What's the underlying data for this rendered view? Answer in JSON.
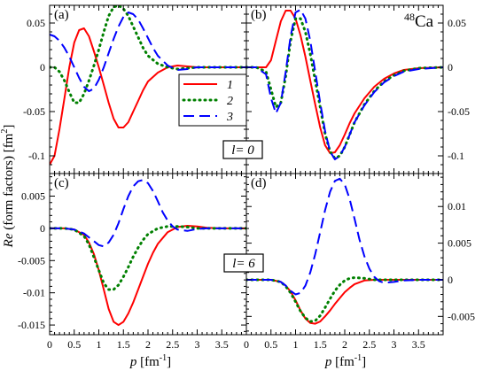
{
  "ylabel": {
    "re": "Re",
    "rest": " (form factors) [fm",
    "sup": "2",
    "close": "]"
  },
  "xlabel": {
    "p": "p",
    "unit": " [fm",
    "sup": "-1",
    "close": "]"
  },
  "nucleus": {
    "mass": "48",
    "symbol": "Ca"
  },
  "l_labels": {
    "l0": "l= 0",
    "l6": "l= 6"
  },
  "legend": [
    {
      "label": "1",
      "color": "#ff0000"
    },
    {
      "label": "2",
      "color": "#008000"
    },
    {
      "label": "3",
      "color": "#0000ff"
    }
  ],
  "chart_data": [
    {
      "id": "a",
      "type": "line",
      "title": "(a)",
      "xlim": [
        0,
        4
      ],
      "ylim": [
        -0.12,
        0.07
      ],
      "x_ticks": [
        0,
        0.5,
        1,
        1.5,
        2,
        2.5,
        3,
        3.5
      ],
      "x_tick_labels": [
        "0",
        "0.5",
        "1",
        "1.5",
        "2",
        "2.5",
        "3",
        "3.5"
      ],
      "y_ticks": [
        -0.1,
        -0.05,
        0,
        0.05
      ],
      "y_tick_labels": [
        "-0.1",
        "-0.05",
        "0",
        "0.05"
      ],
      "series": [
        {
          "name": "1",
          "x": [
            0,
            0.1,
            0.2,
            0.3,
            0.4,
            0.5,
            0.6,
            0.7,
            0.8,
            0.9,
            1,
            1.1,
            1.2,
            1.3,
            1.4,
            1.5,
            1.6,
            1.7,
            1.8,
            1.9,
            2,
            2.2,
            2.4,
            2.6,
            2.8,
            3,
            3.2,
            3.5,
            4
          ],
          "y": [
            -0.11,
            -0.1,
            -0.07,
            -0.035,
            0,
            0.028,
            0.042,
            0.044,
            0.035,
            0.018,
            0,
            -0.02,
            -0.04,
            -0.058,
            -0.068,
            -0.068,
            -0.062,
            -0.05,
            -0.038,
            -0.026,
            -0.016,
            -0.006,
            0,
            0.002,
            0.001,
            0,
            0,
            0,
            0
          ]
        },
        {
          "name": "2",
          "x": [
            0,
            0.1,
            0.2,
            0.3,
            0.4,
            0.5,
            0.6,
            0.7,
            0.8,
            0.9,
            1,
            1.1,
            1.2,
            1.3,
            1.4,
            1.5,
            1.6,
            1.7,
            1.8,
            1.9,
            2,
            2.2,
            2.4,
            2.6,
            2.8,
            3,
            3.2,
            3.5,
            4
          ],
          "y": [
            0,
            0,
            -0.005,
            -0.015,
            -0.028,
            -0.04,
            -0.04,
            -0.03,
            -0.015,
            0.002,
            0.02,
            0.04,
            0.058,
            0.068,
            0.07,
            0.066,
            0.058,
            0.046,
            0.034,
            0.022,
            0.013,
            0.004,
            0,
            -0.002,
            -0.001,
            0,
            0,
            0,
            0
          ]
        },
        {
          "name": "3",
          "x": [
            0,
            0.1,
            0.2,
            0.3,
            0.4,
            0.5,
            0.6,
            0.7,
            0.8,
            0.9,
            1,
            1.1,
            1.2,
            1.3,
            1.4,
            1.5,
            1.6,
            1.7,
            1.8,
            1.9,
            2,
            2.1,
            2.2,
            2.4,
            2.6,
            2.8,
            3,
            3.2,
            3.5,
            4
          ],
          "y": [
            0.037,
            0.035,
            0.03,
            0.022,
            0.012,
            0,
            -0.012,
            -0.022,
            -0.027,
            -0.024,
            -0.014,
            0,
            0.016,
            0.032,
            0.046,
            0.057,
            0.062,
            0.06,
            0.054,
            0.044,
            0.033,
            0.022,
            0.013,
            0.002,
            -0.003,
            -0.002,
            0,
            0,
            0,
            0
          ]
        }
      ]
    },
    {
      "id": "b",
      "type": "line",
      "title": "(b)",
      "xlim": [
        0,
        4
      ],
      "ylim": [
        -0.12,
        0.07
      ],
      "y_axis_side": "right",
      "x_ticks": [
        0,
        0.5,
        1,
        1.5,
        2,
        2.5,
        3,
        3.5
      ],
      "x_tick_labels": [
        "0",
        "0.5",
        "1",
        "1.5",
        "2",
        "2.5",
        "3",
        "3.5"
      ],
      "y_ticks": [
        -0.1,
        -0.05,
        0,
        0.05
      ],
      "y_tick_labels": [
        "-0.1",
        "-0.05",
        "0",
        "0.05"
      ],
      "series": [
        {
          "name": "1",
          "x": [
            0,
            0.2,
            0.4,
            0.5,
            0.6,
            0.7,
            0.8,
            0.9,
            1,
            1.1,
            1.2,
            1.3,
            1.4,
            1.5,
            1.6,
            1.7,
            1.8,
            1.9,
            2,
            2.1,
            2.2,
            2.4,
            2.6,
            2.8,
            3,
            3.2,
            3.5,
            4
          ],
          "y": [
            0,
            0,
            0,
            0.008,
            0.03,
            0.052,
            0.064,
            0.064,
            0.055,
            0.036,
            0.012,
            -0.015,
            -0.042,
            -0.068,
            -0.088,
            -0.097,
            -0.096,
            -0.088,
            -0.076,
            -0.063,
            -0.052,
            -0.035,
            -0.022,
            -0.013,
            -0.007,
            -0.003,
            -0.001,
            0
          ]
        },
        {
          "name": "2",
          "x": [
            0,
            0.2,
            0.4,
            0.5,
            0.6,
            0.7,
            0.8,
            0.9,
            1,
            1.1,
            1.2,
            1.3,
            1.4,
            1.5,
            1.6,
            1.7,
            1.8,
            1.9,
            2,
            2.1,
            2.2,
            2.4,
            2.6,
            2.8,
            3,
            3.2,
            3.5,
            4
          ],
          "y": [
            0,
            0,
            -0.005,
            -0.025,
            -0.045,
            -0.04,
            -0.01,
            0.03,
            0.055,
            0.055,
            0.04,
            0.015,
            -0.015,
            -0.045,
            -0.075,
            -0.095,
            -0.103,
            -0.1,
            -0.09,
            -0.076,
            -0.062,
            -0.042,
            -0.027,
            -0.016,
            -0.009,
            -0.004,
            -0.001,
            0
          ]
        },
        {
          "name": "3",
          "x": [
            0,
            0.2,
            0.4,
            0.5,
            0.6,
            0.7,
            0.8,
            0.9,
            1,
            1.1,
            1.2,
            1.3,
            1.4,
            1.5,
            1.6,
            1.7,
            1.8,
            1.9,
            2,
            2.1,
            2.2,
            2.4,
            2.6,
            2.8,
            3,
            3.2,
            3.5,
            4
          ],
          "y": [
            0,
            0,
            -0.008,
            -0.035,
            -0.052,
            -0.04,
            -0.005,
            0.035,
            0.062,
            0.065,
            0.055,
            0.03,
            -0.005,
            -0.04,
            -0.072,
            -0.095,
            -0.104,
            -0.1,
            -0.09,
            -0.076,
            -0.062,
            -0.043,
            -0.028,
            -0.017,
            -0.01,
            -0.005,
            -0.002,
            0
          ]
        }
      ]
    },
    {
      "id": "c",
      "type": "line",
      "title": "(c)",
      "xlim": [
        0,
        4
      ],
      "ylim": [
        -0.0165,
        0.0085
      ],
      "x_ticks": [
        0,
        0.5,
        1,
        1.5,
        2,
        2.5,
        3,
        3.5
      ],
      "x_tick_labels": [
        "0",
        "0.5",
        "1",
        "1.5",
        "2",
        "2.5",
        "3",
        "3.5"
      ],
      "y_ticks": [
        -0.015,
        -0.01,
        -0.005,
        0,
        0.005
      ],
      "y_tick_labels": [
        "-0.015",
        "-0.01",
        "-0.005",
        "0",
        "0.005"
      ],
      "series": [
        {
          "name": "1",
          "x": [
            0,
            0.3,
            0.5,
            0.7,
            0.8,
            0.9,
            1,
            1.1,
            1.2,
            1.3,
            1.4,
            1.5,
            1.6,
            1.7,
            1.8,
            1.9,
            2,
            2.1,
            2.2,
            2.4,
            2.6,
            2.8,
            3,
            3.2,
            3.5,
            4
          ],
          "y": [
            0,
            0,
            -0.0002,
            -0.001,
            -0.0022,
            -0.004,
            -0.0065,
            -0.0095,
            -0.0125,
            -0.0145,
            -0.015,
            -0.0145,
            -0.0132,
            -0.0115,
            -0.0095,
            -0.0075,
            -0.0055,
            -0.0038,
            -0.0024,
            -0.0006,
            0.0002,
            0.0004,
            0.0003,
            0.0001,
            0,
            0
          ]
        },
        {
          "name": "2",
          "x": [
            0,
            0.3,
            0.5,
            0.7,
            0.8,
            0.9,
            1,
            1.1,
            1.2,
            1.3,
            1.4,
            1.5,
            1.6,
            1.7,
            1.8,
            1.9,
            2,
            2.2,
            2.4,
            2.6,
            2.8,
            3,
            3.2,
            3.5,
            4
          ],
          "y": [
            0,
            0,
            -0.0002,
            -0.0012,
            -0.0025,
            -0.0045,
            -0.0065,
            -0.0085,
            -0.0095,
            -0.0095,
            -0.0088,
            -0.0075,
            -0.006,
            -0.0044,
            -0.003,
            -0.0018,
            -0.0009,
            0,
            0.0003,
            0.0003,
            0.0002,
            0,
            0,
            0,
            0
          ]
        },
        {
          "name": "3",
          "x": [
            0,
            0.3,
            0.5,
            0.7,
            0.8,
            0.9,
            1,
            1.1,
            1.2,
            1.3,
            1.4,
            1.5,
            1.6,
            1.7,
            1.8,
            1.9,
            2,
            2.1,
            2.2,
            2.3,
            2.4,
            2.5,
            2.6,
            2.8,
            3,
            3.2,
            3.5,
            4
          ],
          "y": [
            0,
            0,
            -0.0002,
            -0.0008,
            -0.0014,
            -0.002,
            -0.0026,
            -0.0028,
            -0.0022,
            -0.001,
            0.0008,
            0.003,
            0.005,
            0.0065,
            0.0073,
            0.0075,
            0.007,
            0.0058,
            0.0042,
            0.0025,
            0.0012,
            0.0003,
            -0.0002,
            -0.0004,
            -0.0001,
            0,
            0,
            0
          ]
        }
      ]
    },
    {
      "id": "d",
      "type": "line",
      "title": "(d)",
      "xlim": [
        0,
        4
      ],
      "ylim": [
        -0.0075,
        0.0145
      ],
      "y_axis_side": "right",
      "x_ticks": [
        0,
        0.5,
        1,
        1.5,
        2,
        2.5,
        3,
        3.5
      ],
      "x_tick_labels": [
        "0",
        "0.5",
        "1",
        "1.5",
        "2",
        "2.5",
        "3",
        "3.5"
      ],
      "y_ticks": [
        -0.005,
        0,
        0.005,
        0.01
      ],
      "y_tick_labels": [
        "-0.005",
        "0",
        "0.005",
        "0.01"
      ],
      "series": [
        {
          "name": "1",
          "x": [
            0,
            0.5,
            0.7,
            0.8,
            0.9,
            1,
            1.1,
            1.2,
            1.3,
            1.4,
            1.5,
            1.6,
            1.7,
            1.8,
            1.9,
            2,
            2.1,
            2.2,
            2.4,
            2.6,
            2.8,
            3,
            3.2,
            3.5,
            4
          ],
          "y": [
            0,
            0,
            -0.0003,
            -0.0008,
            -0.0016,
            -0.0028,
            -0.0042,
            -0.0053,
            -0.0059,
            -0.006,
            -0.0057,
            -0.005,
            -0.0042,
            -0.0033,
            -0.0025,
            -0.0017,
            -0.0011,
            -0.0006,
            -0.0001,
            0,
            0,
            0,
            0,
            0,
            0
          ]
        },
        {
          "name": "2",
          "x": [
            0,
            0.5,
            0.7,
            0.8,
            0.9,
            1,
            1.1,
            1.2,
            1.3,
            1.4,
            1.5,
            1.6,
            1.7,
            1.8,
            1.9,
            2,
            2.1,
            2.2,
            2.4,
            2.6,
            2.8,
            3,
            3.2,
            3.5,
            4
          ],
          "y": [
            0,
            0,
            -0.0003,
            -0.0009,
            -0.0018,
            -0.003,
            -0.0043,
            -0.0052,
            -0.0057,
            -0.0056,
            -0.0049,
            -0.0038,
            -0.0026,
            -0.0015,
            -0.0007,
            -0.0001,
            0.0002,
            0.0003,
            0.0002,
            0,
            0,
            0,
            0,
            0,
            0
          ]
        },
        {
          "name": "3",
          "x": [
            0,
            0.5,
            0.7,
            0.8,
            0.9,
            1,
            1.1,
            1.2,
            1.3,
            1.4,
            1.5,
            1.6,
            1.7,
            1.8,
            1.9,
            2,
            2.1,
            2.2,
            2.3,
            2.4,
            2.5,
            2.6,
            2.7,
            2.8,
            3,
            3.2,
            3.5,
            4
          ],
          "y": [
            0,
            0,
            -0.0003,
            -0.0008,
            -0.0015,
            -0.002,
            -0.0018,
            -0.0008,
            0.001,
            0.0035,
            0.0065,
            0.0095,
            0.012,
            0.0135,
            0.0138,
            0.013,
            0.011,
            0.0083,
            0.0055,
            0.0032,
            0.0015,
            0.0004,
            -0.0002,
            -0.0004,
            -0.0003,
            -0.0001,
            0,
            0
          ]
        }
      ]
    }
  ]
}
